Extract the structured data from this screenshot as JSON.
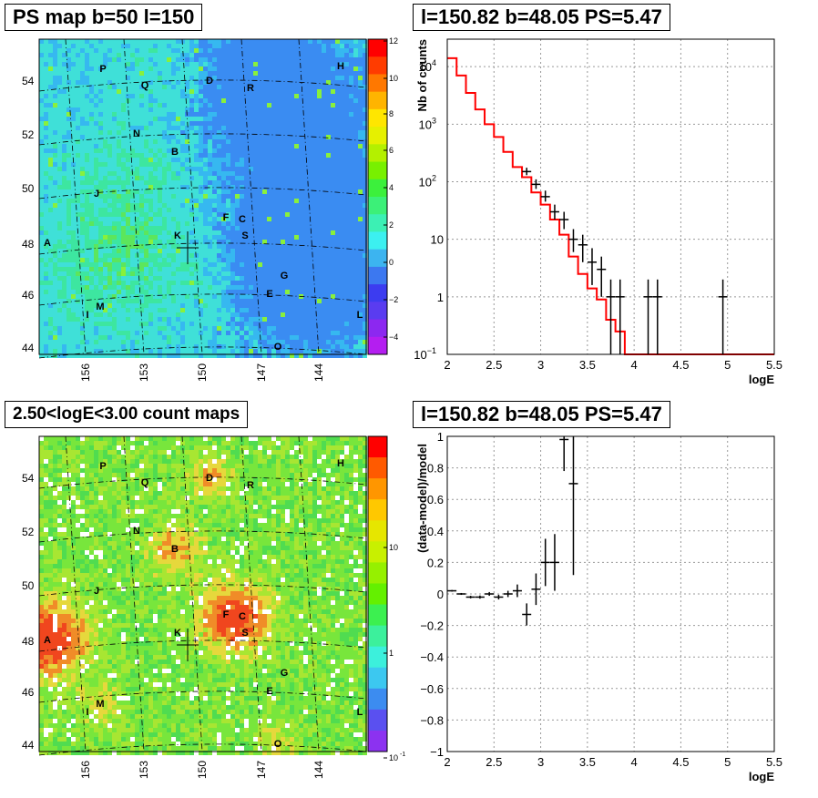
{
  "panels": {
    "top_left_title": "PS map b=50 l=150",
    "top_right_title": "l=150.82 b=48.05 PS=5.47",
    "bottom_left_title": "2.50<logE<3.00 count maps",
    "bottom_right_title": "l=150.82 b=48.05 PS=5.47"
  },
  "maps": {
    "lat_ticks": [
      "54",
      "52",
      "50",
      "48",
      "46",
      "44"
    ],
    "lon_ticks": [
      "156",
      "153",
      "150",
      "147",
      "144"
    ],
    "sources": [
      "P",
      "Q",
      "D",
      "R",
      "H",
      "N",
      "B",
      "J",
      "F",
      "C",
      "S",
      "A",
      "K",
      "G",
      "E",
      "M",
      "I",
      "L",
      "O"
    ],
    "ps_palette_ticks": [
      "12",
      "10",
      "8",
      "6",
      "4",
      "2",
      "0",
      "−2",
      "−4"
    ],
    "count_palette_ticks": [
      "10",
      "1",
      "10"
    ],
    "count_palette_exp": "-1"
  },
  "chart_data": [
    {
      "type": "line",
      "title": "l=150.82 b=48.05 PS=5.47",
      "xlabel": "logE",
      "ylabel": "Nb of counts",
      "log_y": true,
      "xlim": [
        2,
        5.5
      ],
      "ylim": [
        0.1,
        30000
      ],
      "x_ticks": [
        "2",
        "2.5",
        "3",
        "3.5",
        "4",
        "4.5",
        "5",
        "5.5"
      ],
      "y_ticks": [
        "10^4",
        "10^3",
        "10^2",
        "10",
        "1",
        "10^-1"
      ],
      "grid": true,
      "series": [
        {
          "kind": "histogram",
          "color": "#ff0000",
          "bin_edges": [
            2.0,
            2.1,
            2.2,
            2.3,
            2.4,
            2.5,
            2.6,
            2.7,
            2.8,
            2.9,
            3.0,
            3.1,
            3.2,
            3.3,
            3.4,
            3.5,
            3.6,
            3.7,
            3.8,
            3.9,
            4.0,
            4.1,
            4.2,
            4.3,
            4.4,
            4.5,
            4.6,
            4.7,
            4.8,
            4.9,
            5.0,
            5.1,
            5.2,
            5.3,
            5.4,
            5.5
          ],
          "values": [
            14000,
            7000,
            3500,
            1800,
            1000,
            600,
            330,
            180,
            120,
            65,
            40,
            22,
            12,
            5,
            2.5,
            1.4,
            0.9,
            0.4,
            0.25,
            0.1,
            0.1,
            0.1,
            0.1,
            0.1,
            0.1,
            0.1,
            0.1,
            0.1,
            0.1,
            0.1,
            0.1,
            0.1,
            0.1,
            0.1,
            0.1
          ]
        },
        {
          "kind": "points",
          "color": "#000000",
          "x": [
            2.85,
            2.95,
            3.05,
            3.15,
            3.25,
            3.35,
            3.45,
            3.55,
            3.65,
            3.75,
            3.85,
            4.15,
            4.25,
            4.95
          ],
          "y": [
            150,
            90,
            55,
            30,
            22,
            10,
            8,
            4,
            3,
            1,
            1,
            1,
            1,
            1
          ],
          "y_low": [
            130,
            75,
            45,
            22,
            15,
            6,
            4,
            1.6,
            1,
            0.1,
            0.1,
            0.1,
            0.1,
            0.1
          ],
          "y_high": [
            175,
            110,
            70,
            40,
            30,
            15,
            12,
            7,
            5,
            2,
            2,
            2,
            2,
            2
          ]
        }
      ]
    },
    {
      "type": "scatter",
      "title": "l=150.82 b=48.05 PS=5.47",
      "xlabel": "logE",
      "ylabel": "(data-model)/model",
      "xlim": [
        2,
        5.5
      ],
      "ylim": [
        -1,
        1
      ],
      "x_ticks": [
        "2",
        "2.5",
        "3",
        "3.5",
        "4",
        "4.5",
        "5",
        "5.5"
      ],
      "y_ticks": [
        "1",
        "0.8",
        "0.6",
        "0.4",
        "0.2",
        "0",
        "−0.2",
        "−0.4",
        "−0.6",
        "−0.8",
        "−1"
      ],
      "grid": true,
      "series": [
        {
          "color": "#000000",
          "x": [
            2.05,
            2.15,
            2.25,
            2.35,
            2.45,
            2.55,
            2.65,
            2.75,
            2.85,
            2.95,
            3.05,
            3.15,
            3.25,
            3.35
          ],
          "y": [
            0.02,
            0.0,
            -0.02,
            -0.02,
            0.0,
            -0.02,
            0.0,
            0.02,
            -0.13,
            0.03,
            0.2,
            0.2,
            0.98,
            0.7
          ],
          "y_err": [
            0.005,
            0.006,
            0.008,
            0.01,
            0.012,
            0.015,
            0.02,
            0.04,
            0.07,
            0.1,
            0.15,
            0.18,
            0.2,
            0.58
          ]
        }
      ]
    }
  ]
}
